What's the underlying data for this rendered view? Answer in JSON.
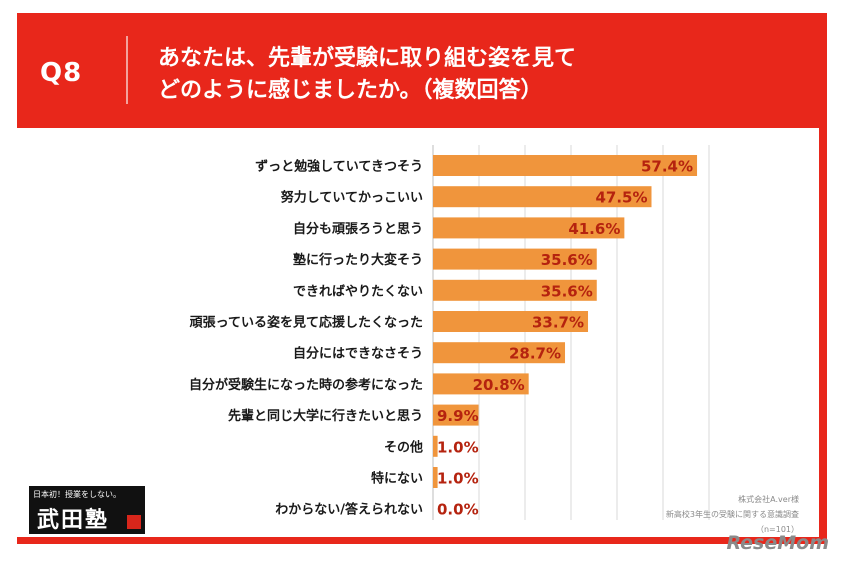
{
  "header": {
    "q_label": "Q8",
    "question_line1": "あなたは、先輩が受験に取り組む姿を見て",
    "question_line2": "どのように感じましたか。（複数回答）"
  },
  "colors": {
    "header_bg": "#e8271b",
    "bar": "#f0953c",
    "value_text": "#b5230f",
    "grid": "#d9d9d9"
  },
  "chart_data": {
    "type": "bar",
    "orientation": "horizontal",
    "categories": [
      "ずっと勉強していてきつそう",
      "努力していてかっこいい",
      "自分も頑張ろうと思う",
      "塾に行ったり大変そう",
      "できればやりたくない",
      "頑張っている姿を見て応援したくなった",
      "自分にはできなさそう",
      "自分が受験生になった時の参考になった",
      "先輩と同じ大学に行きたいと思う",
      "その他",
      "特にない",
      "わからない/答えられない"
    ],
    "values": [
      57.4,
      47.5,
      41.6,
      35.6,
      35.6,
      33.7,
      28.7,
      20.8,
      9.9,
      1.0,
      1.0,
      0.0
    ],
    "value_labels": [
      "57.4%",
      "47.5%",
      "41.6%",
      "35.6%",
      "35.6%",
      "33.7%",
      "28.7%",
      "20.8%",
      "9.9%",
      "1.0%",
      "1.0%",
      "0.0%"
    ],
    "xlim": [
      0,
      100
    ],
    "grid": true
  },
  "notes": {
    "company": "株式会社A.ver様",
    "survey": "新高校3年生の受験に関する意識調査",
    "sample": "（n=101）"
  },
  "logo": {
    "tagline": "日本初！授業をしない。",
    "name": "武田塾"
  },
  "watermark": "ReseMom"
}
